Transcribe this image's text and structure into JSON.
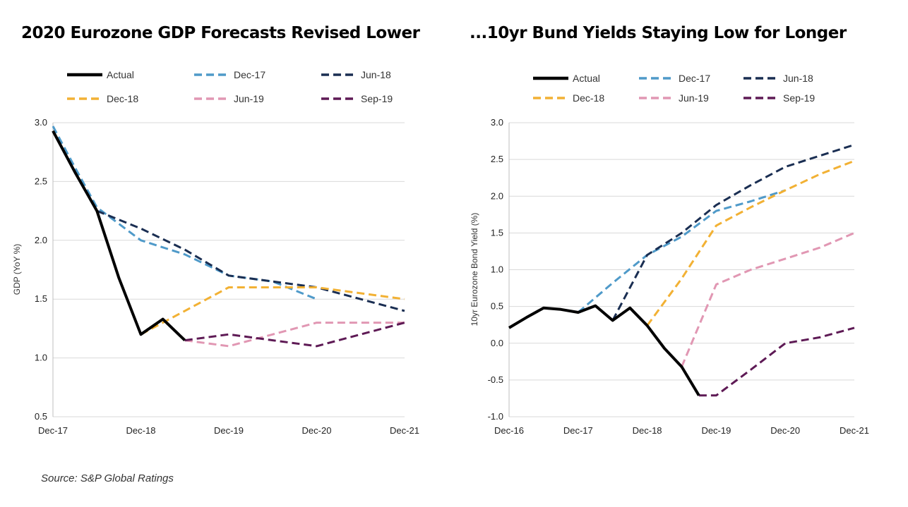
{
  "source": "Source: S&P Global Ratings",
  "colors": {
    "actual": "#000000",
    "dec17": "#4f9ac9",
    "jun18": "#1a2e52",
    "dec18": "#f2b134",
    "jun19": "#e197b3",
    "sep19": "#5e1a55",
    "grid": "#d9d9d9"
  },
  "chart_data": [
    {
      "type": "line",
      "title": "2020 Eurozone GDP Forecasts Revised Lower",
      "xlabel": "",
      "ylabel": "GDP (YoY %)",
      "categories": [
        "Dec-17",
        "Dec-18",
        "Dec-19",
        "Dec-20",
        "Dec-21"
      ],
      "ylim": [
        0.5,
        3.0
      ],
      "yticks": [
        "0.5",
        "1.0",
        "1.5",
        "2.0",
        "2.5",
        "3.0"
      ],
      "grid": true,
      "legend_position": "top",
      "series": [
        {
          "name": "Actual",
          "key": "actual",
          "dashed": false,
          "x": [
            0,
            0.25,
            0.5,
            0.75,
            1.0,
            1.25,
            1.5
          ],
          "values": [
            2.93,
            2.58,
            2.25,
            1.68,
            1.2,
            1.33,
            1.15
          ]
        },
        {
          "name": "Dec-17",
          "key": "dec17",
          "dashed": true,
          "x": [
            0,
            0.25,
            0.5,
            1.0,
            1.5,
            2.0,
            2.5,
            3.0
          ],
          "values": [
            2.97,
            2.62,
            2.28,
            2.0,
            1.88,
            1.7,
            1.65,
            1.5
          ]
        },
        {
          "name": "Jun-18",
          "key": "jun18",
          "dashed": true,
          "x": [
            0.5,
            1.0,
            1.5,
            2.0,
            2.5,
            3.0,
            3.5,
            4.0
          ],
          "values": [
            2.25,
            2.1,
            1.92,
            1.7,
            1.65,
            1.6,
            1.5,
            1.4
          ]
        },
        {
          "name": "Dec-18",
          "key": "dec18",
          "dashed": true,
          "x": [
            1.0,
            1.5,
            2.0,
            2.5,
            3.0,
            3.5,
            4.0
          ],
          "values": [
            1.2,
            1.4,
            1.6,
            1.6,
            1.6,
            1.55,
            1.5
          ]
        },
        {
          "name": "Jun-19",
          "key": "jun19",
          "dashed": true,
          "x": [
            1.5,
            2.0,
            2.5,
            3.0,
            3.5,
            4.0
          ],
          "values": [
            1.15,
            1.1,
            1.2,
            1.3,
            1.3,
            1.3
          ]
        },
        {
          "name": "Sep-19",
          "key": "sep19",
          "dashed": true,
          "x": [
            1.5,
            2.0,
            2.5,
            3.0,
            3.5,
            4.0
          ],
          "values": [
            1.15,
            1.2,
            1.15,
            1.1,
            1.2,
            1.3
          ]
        }
      ]
    },
    {
      "type": "line",
      "title": "...10yr Bund Yields Staying Low for Longer",
      "xlabel": "",
      "ylabel": "10yr Eurozone Bond Yield (%)",
      "categories": [
        "Dec-16",
        "Dec-17",
        "Dec-18",
        "Dec-19",
        "Dec-20",
        "Dec-21"
      ],
      "ylim": [
        -1.0,
        3.0
      ],
      "yticks": [
        "-1.0",
        "-0.5",
        "0.0",
        "0.5",
        "1.0",
        "1.5",
        "2.0",
        "2.5",
        "3.0"
      ],
      "grid": true,
      "legend_position": "top",
      "series": [
        {
          "name": "Actual",
          "key": "actual",
          "dashed": false,
          "x": [
            0,
            0.25,
            0.5,
            0.75,
            1.0,
            1.25,
            1.5,
            1.75,
            2.0,
            2.25,
            2.5,
            2.75
          ],
          "values": [
            0.21,
            0.35,
            0.48,
            0.46,
            0.42,
            0.51,
            0.31,
            0.48,
            0.24,
            -0.07,
            -0.32,
            -0.71
          ]
        },
        {
          "name": "Dec-17",
          "key": "dec17",
          "dashed": true,
          "x": [
            1.0,
            1.5,
            2.0,
            2.5,
            3.0,
            3.5,
            4.0
          ],
          "values": [
            0.42,
            0.82,
            1.2,
            1.45,
            1.8,
            1.93,
            2.08
          ]
        },
        {
          "name": "Jun-18",
          "key": "jun18",
          "dashed": true,
          "x": [
            1.5,
            2.0,
            2.5,
            3.0,
            3.5,
            4.0,
            4.5,
            5.0
          ],
          "values": [
            0.31,
            1.2,
            1.5,
            1.88,
            2.15,
            2.4,
            2.55,
            2.7
          ]
        },
        {
          "name": "Dec-18",
          "key": "dec18",
          "dashed": true,
          "x": [
            2.0,
            2.5,
            3.0,
            3.5,
            4.0,
            4.5,
            5.0
          ],
          "values": [
            0.24,
            0.88,
            1.6,
            1.85,
            2.08,
            2.3,
            2.48
          ]
        },
        {
          "name": "Jun-19",
          "key": "jun19",
          "dashed": true,
          "x": [
            2.5,
            3.0,
            3.5,
            4.0,
            4.5,
            5.0
          ],
          "values": [
            -0.32,
            0.8,
            1.0,
            1.15,
            1.3,
            1.5
          ]
        },
        {
          "name": "Sep-19",
          "key": "sep19",
          "dashed": true,
          "x": [
            2.75,
            3.0,
            3.5,
            4.0,
            4.5,
            5.0
          ],
          "values": [
            -0.71,
            -0.71,
            -0.36,
            0.0,
            0.08,
            0.21
          ]
        }
      ]
    }
  ]
}
